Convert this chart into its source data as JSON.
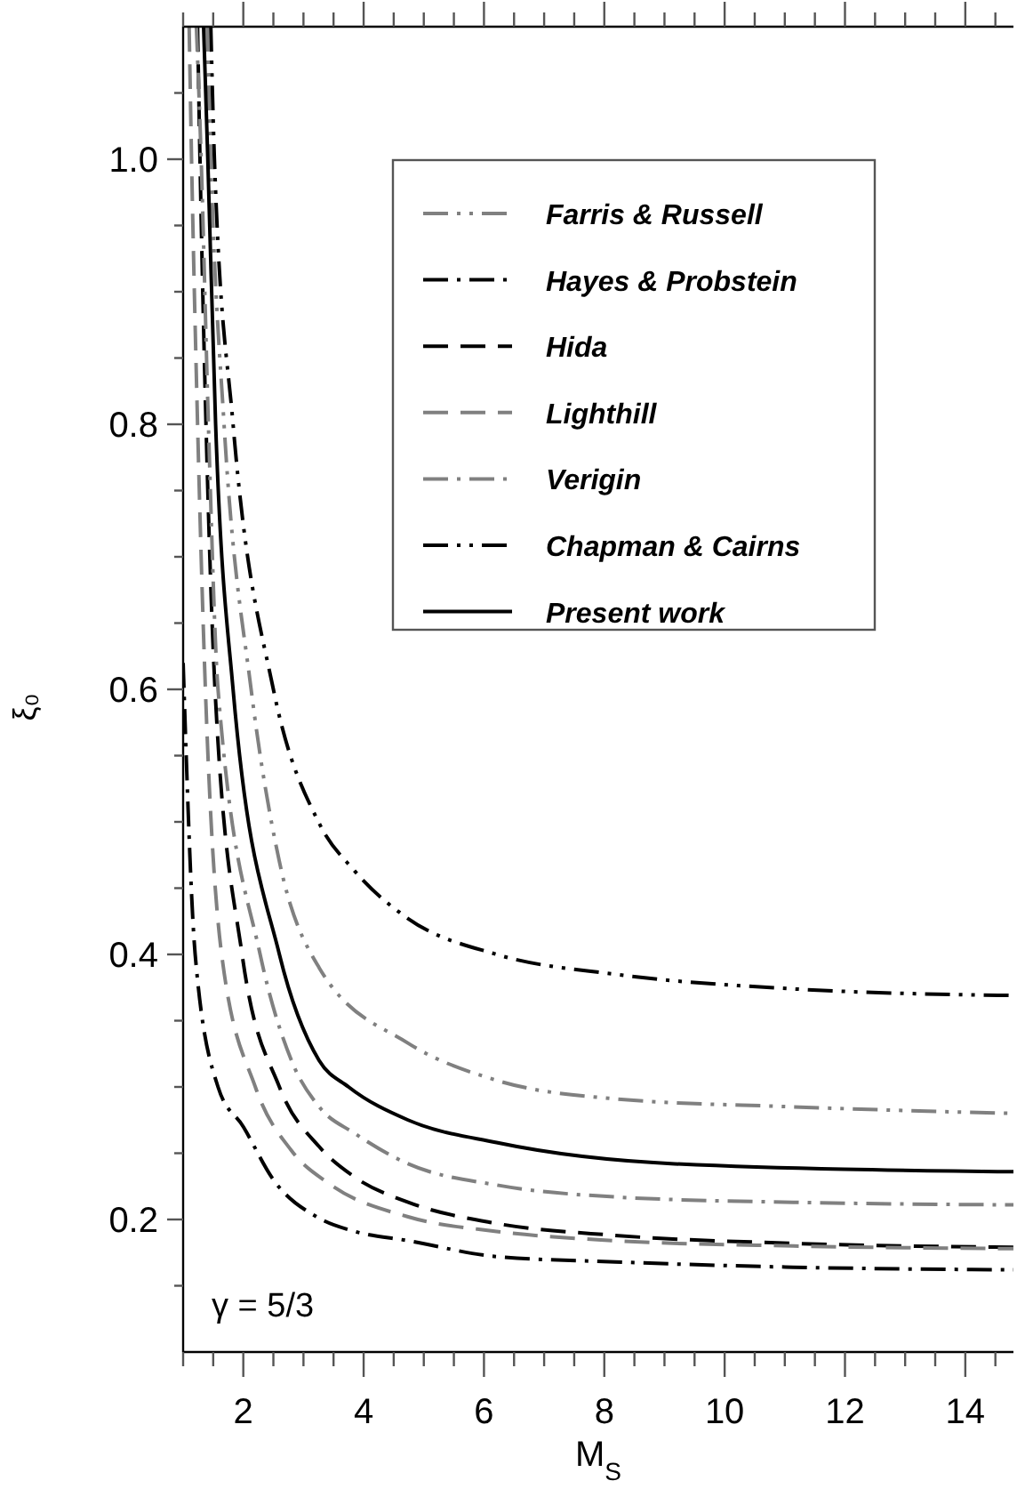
{
  "chart_data": {
    "type": "line",
    "xlabel": "M$_{S}$",
    "ylabel": "ξ₀",
    "xlim": [
      1,
      14.8
    ],
    "ylim": [
      0.1,
      1.1
    ],
    "xticks": [
      {
        "value": 1,
        "label": null
      },
      {
        "value": 1.5,
        "label": null
      },
      2,
      {
        "value": 2.5,
        "label": null
      },
      {
        "value": 3,
        "label": null
      },
      {
        "value": 3.5,
        "label": null
      },
      4,
      {
        "value": 4.5,
        "label": null
      },
      {
        "value": 5,
        "label": null
      },
      {
        "value": 5.5,
        "label": null
      },
      6,
      {
        "value": 6.5,
        "label": null
      },
      {
        "value": 7,
        "label": null
      },
      {
        "value": 7.5,
        "label": null
      },
      8,
      {
        "value": 8.5,
        "label": null
      },
      {
        "value": 9,
        "label": null
      },
      {
        "value": 9.5,
        "label": null
      },
      10,
      {
        "value": 10.5,
        "label": null
      },
      {
        "value": 11,
        "label": null
      },
      {
        "value": 11.5,
        "label": null
      },
      12,
      {
        "value": 12.5,
        "label": null
      },
      {
        "value": 13,
        "label": null
      },
      {
        "value": 13.5,
        "label": null
      },
      14,
      {
        "value": 14.5,
        "label": null
      }
    ],
    "yticks": [
      {
        "value": 0.15,
        "label": null
      },
      {
        "value": 0.2,
        "label": "0.2"
      },
      {
        "value": 0.25,
        "label": null
      },
      {
        "value": 0.3,
        "label": null
      },
      {
        "value": 0.35,
        "label": null
      },
      {
        "value": 0.4,
        "label": "0.4"
      },
      {
        "value": 0.45,
        "label": null
      },
      {
        "value": 0.5,
        "label": null
      },
      {
        "value": 0.55,
        "label": null
      },
      {
        "value": 0.6,
        "label": "0.6"
      },
      {
        "value": 0.65,
        "label": null
      },
      {
        "value": 0.7,
        "label": null
      },
      {
        "value": 0.75,
        "label": null
      },
      {
        "value": 0.8,
        "label": "0.8"
      },
      {
        "value": 0.85,
        "label": null
      },
      {
        "value": 0.9,
        "label": null
      },
      {
        "value": 0.95,
        "label": null
      },
      {
        "value": 1.0,
        "label": "1.0"
      },
      {
        "value": 1.05,
        "label": null
      }
    ],
    "grid": false,
    "legend": "top right",
    "marker": "none",
    "annotations": [
      "γ = 5/3"
    ],
    "series": [
      {
        "name": "Farris & Russell",
        "color": "#808080",
        "line_style": "dashdotdot",
        "x": [
          1.4,
          1.46,
          1.68,
          2.13,
          2.6,
          3.26,
          4.74,
          6.21,
          8.18,
          11.14,
          14.8
        ],
        "values": [
          1.1,
          1.0,
          0.8,
          0.6,
          0.47,
          0.39,
          0.333,
          0.305,
          0.291,
          0.285,
          0.28
        ]
      },
      {
        "name": "Hayes & Probstein",
        "color": "#000000",
        "line_style": "dashdot",
        "x": [
          1.0,
          1.2,
          1.58,
          2.0,
          2.5,
          3.26,
          3.85,
          4.74,
          6.21,
          8.18,
          11.14,
          14.8
        ],
        "values": [
          0.62,
          0.4,
          0.3,
          0.27,
          0.23,
          0.201,
          0.191,
          0.184,
          0.172,
          0.168,
          0.164,
          0.162
        ]
      },
      {
        "name": "Hida",
        "color": "#000000",
        "line_style": "dashed",
        "x": [
          1.24,
          1.28,
          1.38,
          1.53,
          1.98,
          2.6,
          3.26,
          3.85,
          4.74,
          6.21,
          8.18,
          11.14,
          14.8
        ],
        "values": [
          1.1,
          1.0,
          0.8,
          0.6,
          0.4,
          0.3,
          0.255,
          0.232,
          0.213,
          0.197,
          0.188,
          0.182,
          0.179
        ]
      },
      {
        "name": "Lighthill",
        "color": "#808080",
        "line_style": "dashed",
        "x": [
          1.1,
          1.14,
          1.24,
          1.37,
          1.64,
          2.2,
          2.8,
          3.46,
          4.74,
          6.21,
          8.18,
          11.14,
          14.8
        ],
        "values": [
          1.1,
          1.0,
          0.8,
          0.6,
          0.4,
          0.3,
          0.252,
          0.226,
          0.202,
          0.191,
          0.184,
          0.18,
          0.178
        ]
      },
      {
        "name": "Verigin",
        "color": "#808080",
        "line_style": "dashdot",
        "x": [
          1.22,
          1.3,
          1.42,
          1.58,
          2.28,
          2.8,
          3.26,
          3.85,
          4.74,
          6.21,
          8.18,
          11.14,
          14.8
        ],
        "values": [
          1.1,
          1.0,
          0.8,
          0.6,
          0.4,
          0.32,
          0.285,
          0.265,
          0.242,
          0.226,
          0.217,
          0.213,
          0.211
        ]
      },
      {
        "name": "Chapman & Cairns",
        "color": "#000000",
        "line_style": "dashdotdot",
        "x": [
          1.46,
          1.52,
          1.83,
          2.5,
          3.26,
          3.85,
          4.74,
          6.21,
          8.18,
          11.14,
          14.8
        ],
        "values": [
          1.1,
          1.0,
          0.8,
          0.6,
          0.499,
          0.463,
          0.427,
          0.4,
          0.385,
          0.374,
          0.369
        ]
      },
      {
        "name": "Present work",
        "color": "#000000",
        "line_style": "solid",
        "x": [
          1.34,
          1.41,
          1.54,
          1.83,
          2.6,
          3.26,
          3.75,
          4.74,
          6.21,
          9.17,
          14.8
        ],
        "values": [
          1.1,
          1.0,
          0.8,
          0.6,
          0.4,
          0.32,
          0.3,
          0.275,
          0.258,
          0.242,
          0.236
        ]
      }
    ]
  }
}
